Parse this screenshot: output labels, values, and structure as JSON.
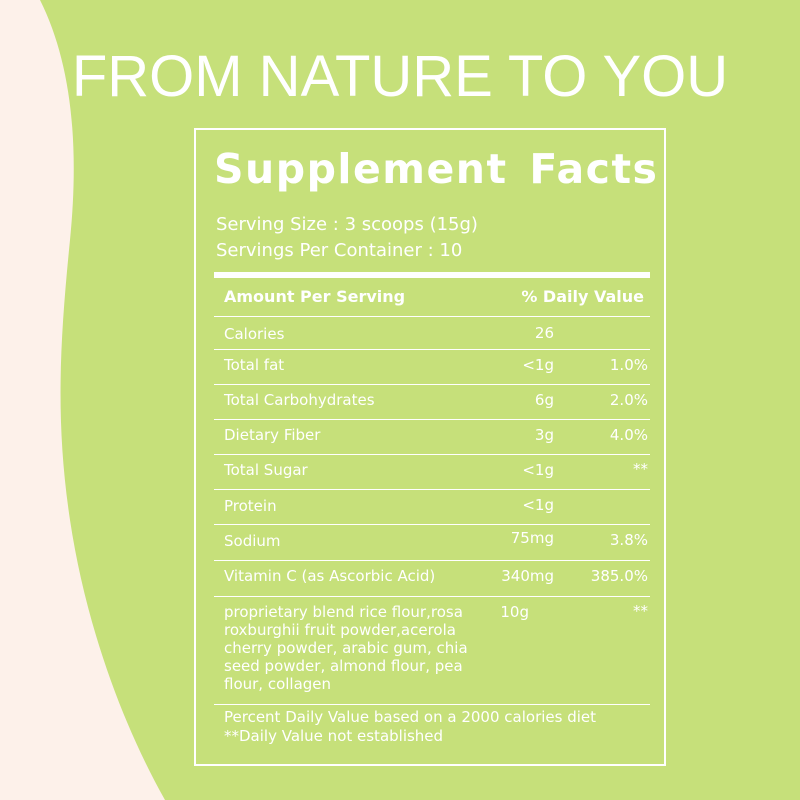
{
  "headline": "FROM NATURE TO YOU",
  "panel": {
    "title": "Supplement  Facts",
    "serving_size": "Serving Size : 3 scoops (15g)",
    "servings_per_container": "Servings Per Container : 10",
    "header_amount": "Amount Per Serving",
    "header_dv": "% Daily Value",
    "rows": [
      {
        "name": "Calories",
        "amount": "26",
        "dv": ""
      },
      {
        "name": "Total fat",
        "amount": "<1g",
        "dv": "1.0%"
      },
      {
        "name": "Total Carbohydrates",
        "amount": "6g",
        "dv": "2.0%"
      },
      {
        "name": "Dietary Fiber",
        "amount": "3g",
        "dv": "4.0%"
      },
      {
        "name": "Total Sugar",
        "amount": "<1g",
        "dv": "**"
      },
      {
        "name": "Protein",
        "amount": "<1g",
        "dv": ""
      },
      {
        "name": "Sodium",
        "amount": "75mg",
        "dv": "3.8%"
      },
      {
        "name": "Vitamin C (as Ascorbic Acid)",
        "amount": "340mg",
        "dv": "385.0%"
      },
      {
        "name": "proprietary blend rice flour,rosa roxburghii fruit powder,acerola cherry powder, arabic gum, chia seed powder, almond flour, pea flour, collagen",
        "amount": "10g",
        "dv": "**"
      }
    ],
    "footer_line1": "Percent Daily Value based on a 2000 calories diet",
    "footer_line2": "**Daily Value not established"
  },
  "colors": {
    "background_green": "#c6e07a",
    "background_cream": "#fdf1ea",
    "text": "#ffffff"
  }
}
